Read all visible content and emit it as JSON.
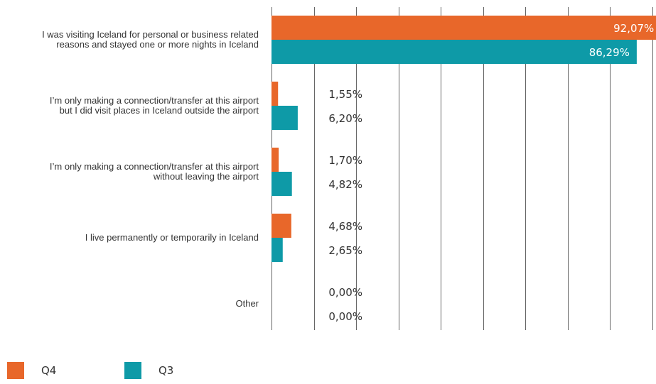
{
  "chart_data": {
    "type": "bar",
    "orientation": "horizontal",
    "categories": [
      [
        "I was visiting Iceland for personal or business related",
        "reasons and stayed one or more nights in Iceland"
      ],
      [
        "I’m only making a connection/transfer at this airport",
        "but I did visit places in Iceland outside the airport"
      ],
      [
        "I’m only making a connection/transfer at this airport",
        "without leaving the airport"
      ],
      [
        "I live permanently or temporarily in Iceland"
      ],
      [
        "Other"
      ]
    ],
    "series": [
      {
        "name": "Q4",
        "color": "#e8672a",
        "values": [
          92.07,
          1.55,
          1.7,
          4.68,
          0.0
        ],
        "labels": [
          "92,07%",
          "1,55%",
          "1,70%",
          "4,68%",
          "0,00%"
        ]
      },
      {
        "name": "Q3",
        "color": "#0e9aa7",
        "values": [
          86.29,
          6.2,
          4.82,
          2.65,
          0.0
        ],
        "labels": [
          "86,29%",
          "6,20%",
          "4,82%",
          "2,65%",
          "0,00%"
        ]
      }
    ],
    "xlim": [
      0,
      90
    ],
    "grid": true,
    "legend_position": "bottom-left",
    "title": "",
    "xlabel": "",
    "ylabel": ""
  }
}
